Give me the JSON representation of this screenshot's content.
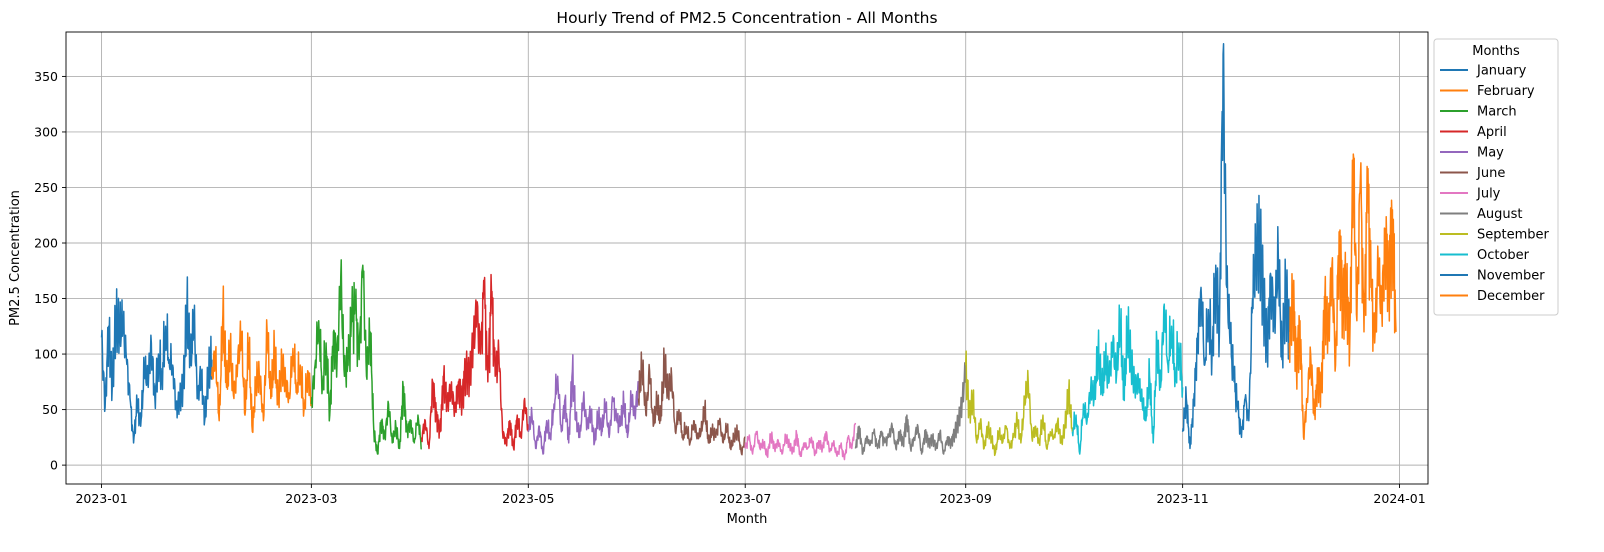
{
  "chart_data": {
    "type": "line",
    "title": "Hourly Trend of PM2.5 Concentration - All Months",
    "xlabel": "Month",
    "ylabel": "PM2.5 Concentration",
    "xlim": [
      "2022-12-22",
      "2024-01-09"
    ],
    "ylim": [
      -17,
      390
    ],
    "x_ticks": [
      "2023-01",
      "2023-03",
      "2023-05",
      "2023-07",
      "2023-09",
      "2023-11",
      "2024-01"
    ],
    "y_ticks": [
      0,
      50,
      100,
      150,
      200,
      250,
      300,
      350
    ],
    "grid": true,
    "legend": {
      "title": "Months",
      "placement": "outside-top-right"
    },
    "series": [
      {
        "name": "January",
        "color": "#1f77b4",
        "x_start": "2023-01-01",
        "x_end": "2023-02-01",
        "values": [
          115,
          52,
          125,
          70,
          130,
          118,
          126,
          95,
          60,
          20,
          55,
          35,
          85,
          75,
          110,
          60,
          100,
          80,
          125,
          95,
          90,
          50,
          60,
          70,
          140,
          90,
          130,
          60,
          85,
          40,
          80,
          95
        ]
      },
      {
        "name": "February",
        "color": "#ff7f0e",
        "x_start": "2023-02-01",
        "x_end": "2023-03-01",
        "values": [
          80,
          100,
          40,
          135,
          70,
          100,
          60,
          90,
          120,
          45,
          110,
          30,
          75,
          80,
          40,
          120,
          60,
          100,
          55,
          90,
          75,
          60,
          105,
          70,
          90,
          50,
          85,
          60
        ]
      },
      {
        "name": "March",
        "color": "#2ca02c",
        "x_start": "2023-03-01",
        "x_end": "2023-04-01",
        "values": [
          55,
          90,
          130,
          70,
          110,
          45,
          120,
          95,
          170,
          80,
          90,
          130,
          140,
          95,
          180,
          80,
          120,
          30,
          10,
          40,
          25,
          55,
          20,
          35,
          15,
          70,
          30,
          40,
          20,
          45,
          15
        ]
      },
      {
        "name": "April",
        "color": "#d62728",
        "x_start": "2023-04-01",
        "x_end": "2023-05-01",
        "values": [
          25,
          40,
          15,
          75,
          45,
          30,
          80,
          55,
          70,
          50,
          75,
          60,
          90,
          80,
          110,
          140,
          100,
          160,
          75,
          155,
          80,
          100,
          30,
          20,
          40,
          15,
          45,
          25,
          60,
          30
        ]
      },
      {
        "name": "May",
        "color": "#9467bd",
        "x_start": "2023-05-01",
        "x_end": "2023-06-01",
        "values": [
          30,
          45,
          15,
          35,
          10,
          40,
          25,
          55,
          80,
          30,
          60,
          20,
          85,
          40,
          25,
          60,
          35,
          50,
          20,
          45,
          30,
          55,
          25,
          60,
          40,
          35,
          55,
          25,
          60,
          45,
          75
        ]
      },
      {
        "name": "June",
        "color": "#8c564b",
        "x_start": "2023-06-01",
        "x_end": "2023-07-01",
        "values": [
          60,
          90,
          45,
          85,
          35,
          55,
          40,
          90,
          65,
          80,
          30,
          50,
          25,
          35,
          20,
          40,
          25,
          30,
          50,
          20,
          30,
          25,
          40,
          20,
          35,
          15,
          25,
          30,
          10,
          25
        ]
      },
      {
        "name": "July",
        "color": "#e377c2",
        "x_start": "2023-07-01",
        "x_end": "2023-08-01",
        "values": [
          15,
          25,
          10,
          30,
          15,
          20,
          8,
          28,
          15,
          22,
          10,
          25,
          18,
          12,
          28,
          8,
          20,
          15,
          25,
          10,
          22,
          15,
          30,
          12,
          20,
          8,
          18,
          5,
          25,
          15,
          38
        ]
      },
      {
        "name": "August",
        "color": "#7f7f7f",
        "x_start": "2023-08-01",
        "x_end": "2023-09-01",
        "values": [
          15,
          35,
          10,
          25,
          18,
          30,
          15,
          28,
          20,
          25,
          35,
          15,
          30,
          20,
          45,
          15,
          25,
          35,
          10,
          30,
          20,
          25,
          15,
          30,
          10,
          25,
          20,
          30,
          40,
          55,
          88
        ]
      },
      {
        "name": "September",
        "color": "#bcbd22",
        "x_start": "2023-09-01",
        "x_end": "2023-10-01",
        "values": [
          90,
          45,
          60,
          20,
          40,
          15,
          35,
          25,
          10,
          30,
          20,
          35,
          15,
          25,
          40,
          20,
          55,
          75,
          25,
          35,
          20,
          45,
          15,
          30,
          25,
          40,
          20,
          35,
          65,
          30
        ]
      },
      {
        "name": "October",
        "color": "#17becf",
        "x_start": "2023-10-01",
        "x_end": "2023-11-01",
        "values": [
          30,
          45,
          10,
          55,
          40,
          70,
          60,
          100,
          65,
          90,
          75,
          110,
          80,
          130,
          60,
          120,
          90,
          70,
          75,
          55,
          40,
          80,
          20,
          110,
          70,
          145,
          90,
          125,
          80,
          110,
          70
        ]
      },
      {
        "name": "November",
        "color": "#1f77b4",
        "x_start": "2023-11-01",
        "x_end": "2023-12-01",
        "values": [
          30,
          60,
          15,
          55,
          110,
          160,
          90,
          140,
          100,
          180,
          120,
          370,
          160,
          110,
          75,
          50,
          25,
          60,
          40,
          150,
          190,
          200,
          150,
          110,
          170,
          130,
          190,
          95,
          160,
          120
        ]
      },
      {
        "name": "December",
        "color": "#ff7f0e",
        "x_start": "2023-12-01",
        "x_end": "2023-12-31",
        "values": [
          110,
          160,
          90,
          130,
          25,
          60,
          100,
          45,
          80,
          70,
          150,
          120,
          180,
          90,
          210,
          150,
          170,
          110,
          280,
          130,
          260,
          120,
          250,
          160,
          110,
          180,
          140,
          210,
          170,
          230,
          120
        ]
      }
    ]
  }
}
